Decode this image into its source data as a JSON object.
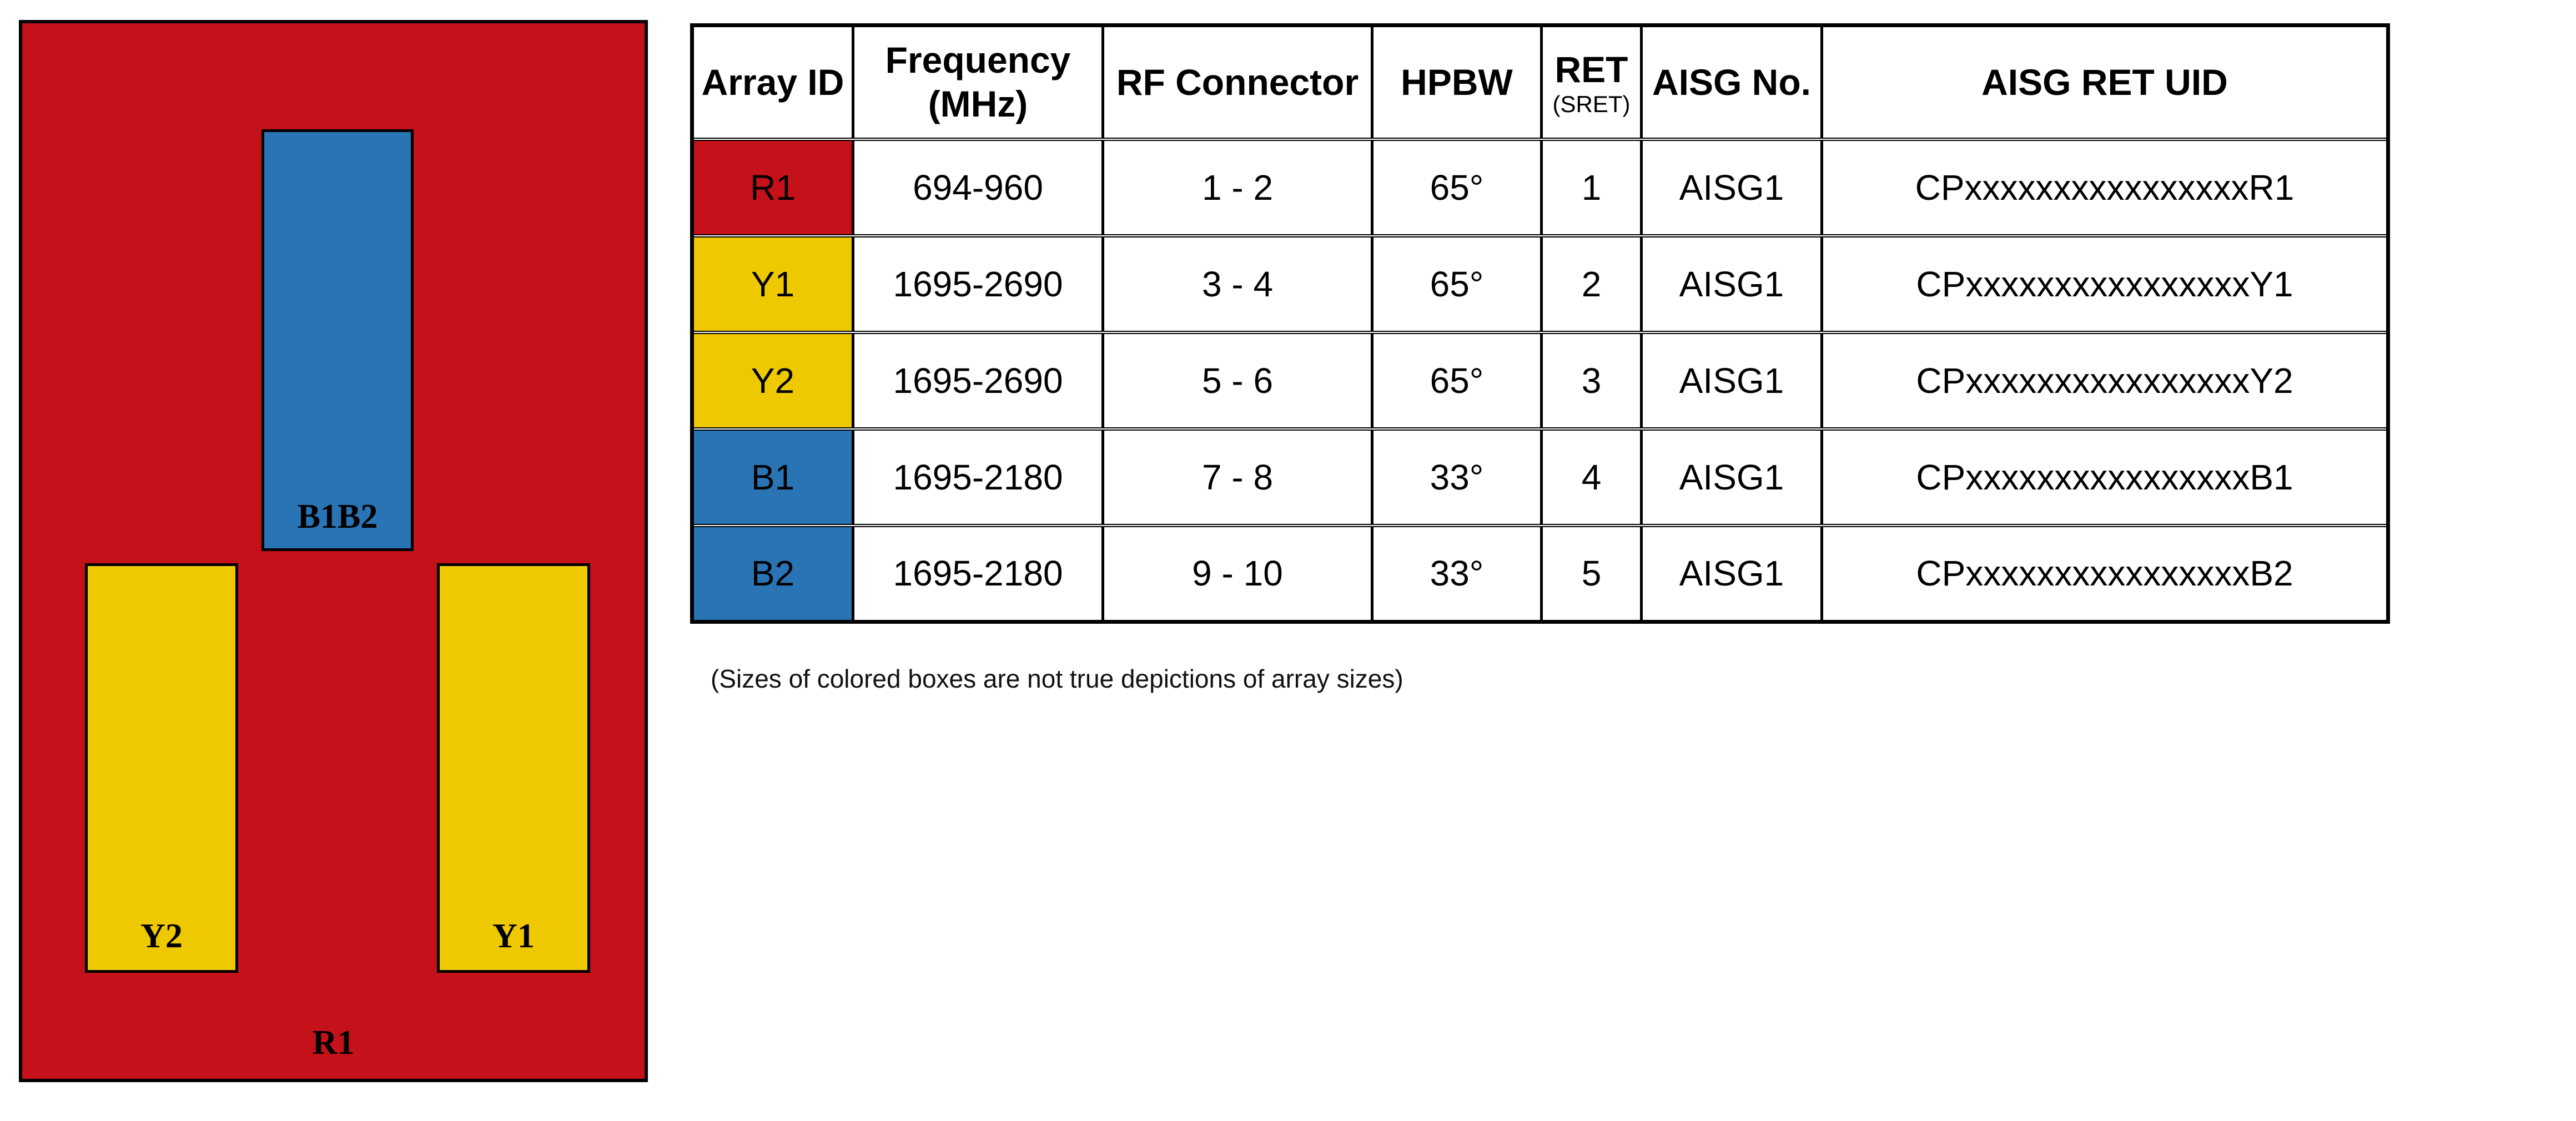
{
  "colors": {
    "red": "#C51119",
    "blue": "#2874B4",
    "yellow": "#EEC900",
    "line": "#000000"
  },
  "diagram": {
    "r1_label": "R1",
    "b1b2_label": "B1B2",
    "y1_label": "Y1",
    "y2_label": "Y2"
  },
  "table": {
    "headers": {
      "array_id": "Array ID",
      "frequency_line1": "Frequency",
      "frequency_line2": "(MHz)",
      "rf_connector": "RF Connector",
      "hpbw": "HPBW",
      "ret": "RET",
      "ret_sub": "(SRET)",
      "aisg_no": "AISG No.",
      "aisg_ret_uid": "AISG RET UID"
    },
    "rows": [
      {
        "array_id": "R1",
        "color": "#C51119",
        "frequency": "694-960",
        "rf_connector": "1 - 2",
        "hpbw": "65°",
        "ret": "1",
        "aisg_no": "AISG1",
        "aisg_ret_uid": "CPxxxxxxxxxxxxxxxxR1"
      },
      {
        "array_id": "Y1",
        "color": "#EEC900",
        "frequency": "1695-2690",
        "rf_connector": "3 - 4",
        "hpbw": "65°",
        "ret": "2",
        "aisg_no": "AISG1",
        "aisg_ret_uid": "CPxxxxxxxxxxxxxxxxY1"
      },
      {
        "array_id": "Y2",
        "color": "#EEC900",
        "frequency": "1695-2690",
        "rf_connector": "5 - 6",
        "hpbw": "65°",
        "ret": "3",
        "aisg_no": "AISG1",
        "aisg_ret_uid": "CPxxxxxxxxxxxxxxxxY2"
      },
      {
        "array_id": "B1",
        "color": "#2874B4",
        "frequency": "1695-2180",
        "rf_connector": "7 - 8",
        "hpbw": "33°",
        "ret": "4",
        "aisg_no": "AISG1",
        "aisg_ret_uid": "CPxxxxxxxxxxxxxxxxB1"
      },
      {
        "array_id": "B2",
        "color": "#2874B4",
        "frequency": "1695-2180",
        "rf_connector": "9 - 10",
        "hpbw": "33°",
        "ret": "5",
        "aisg_no": "AISG1",
        "aisg_ret_uid": "CPxxxxxxxxxxxxxxxxB2"
      }
    ]
  },
  "caption": "(Sizes of colored boxes are not true depictions of array sizes)"
}
